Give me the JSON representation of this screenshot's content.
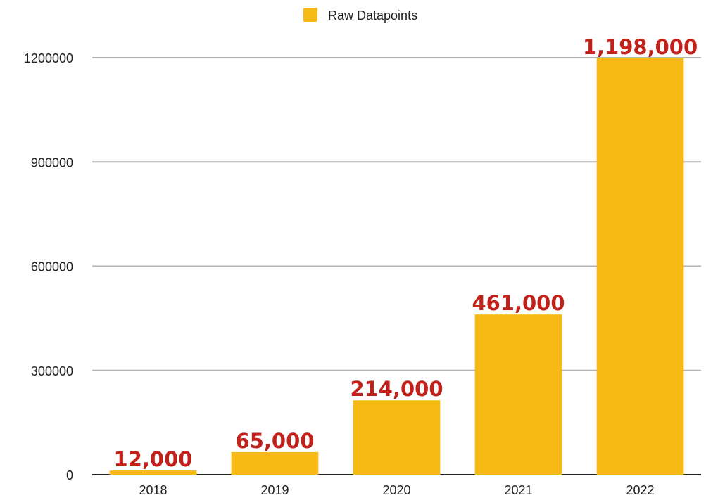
{
  "chart_data": {
    "type": "bar",
    "title": "",
    "xlabel": "",
    "ylabel": "",
    "categories": [
      "2018",
      "2019",
      "2020",
      "2021",
      "2022"
    ],
    "series": [
      {
        "name": "Raw Datapoints",
        "values": [
          12000,
          65000,
          214000,
          461000,
          1198000
        ],
        "data_labels": [
          "12,000",
          "65,000",
          "214,000",
          "461,000",
          "1,198,000"
        ],
        "color": "#f7b916"
      }
    ],
    "ylim": [
      0,
      1200000
    ],
    "yticks": [
      0,
      300000,
      600000,
      900000,
      1200000
    ],
    "ytick_labels": [
      "0",
      "300000",
      "600000",
      "900000",
      "1200000"
    ],
    "grid": true,
    "legend_position": "top-center",
    "colors": {
      "bar": "#f7b916",
      "data_label": "#c1211b",
      "grid": "#b3b3b3",
      "axis": "#222222"
    }
  }
}
